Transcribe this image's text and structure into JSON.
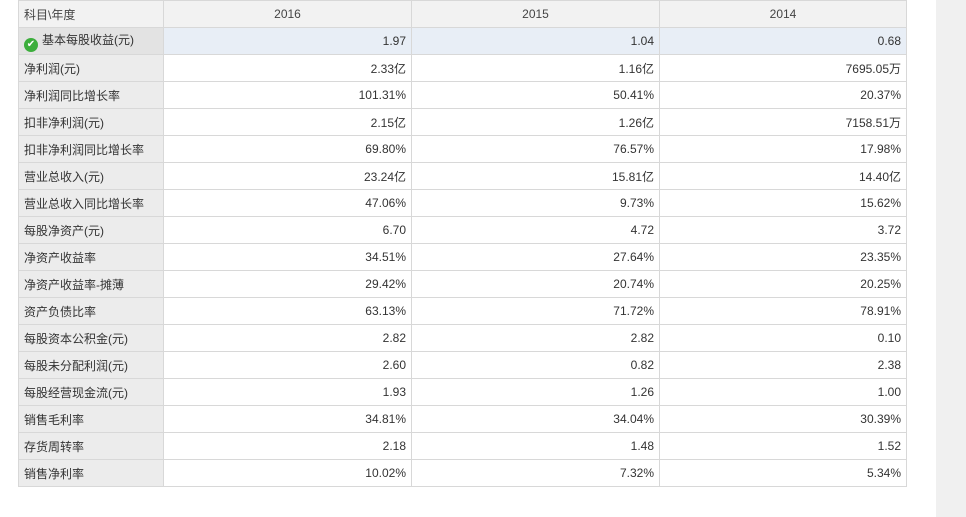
{
  "table": {
    "header": {
      "label": "科目\\年度",
      "years": [
        "2016",
        "2015",
        "2014"
      ]
    },
    "rows": [
      {
        "label": "基本每股收益(元)",
        "values": [
          "1.97",
          "1.04",
          "0.68"
        ],
        "selected": true
      },
      {
        "label": "净利润(元)",
        "values": [
          "2.33亿",
          "1.16亿",
          "7695.05万"
        ]
      },
      {
        "label": "净利润同比增长率",
        "values": [
          "101.31%",
          "50.41%",
          "20.37%"
        ]
      },
      {
        "label": "扣非净利润(元)",
        "values": [
          "2.15亿",
          "1.26亿",
          "7158.51万"
        ]
      },
      {
        "label": "扣非净利润同比增长率",
        "values": [
          "69.80%",
          "76.57%",
          "17.98%"
        ]
      },
      {
        "label": "营业总收入(元)",
        "values": [
          "23.24亿",
          "15.81亿",
          "14.40亿"
        ]
      },
      {
        "label": "营业总收入同比增长率",
        "values": [
          "47.06%",
          "9.73%",
          "15.62%"
        ]
      },
      {
        "label": "每股净资产(元)",
        "values": [
          "6.70",
          "4.72",
          "3.72"
        ]
      },
      {
        "label": "净资产收益率",
        "values": [
          "34.51%",
          "27.64%",
          "23.35%"
        ]
      },
      {
        "label": "净资产收益率-摊薄",
        "values": [
          "29.42%",
          "20.74%",
          "20.25%"
        ]
      },
      {
        "label": "资产负债比率",
        "values": [
          "63.13%",
          "71.72%",
          "78.91%"
        ]
      },
      {
        "label": "每股资本公积金(元)",
        "values": [
          "2.82",
          "2.82",
          "0.10"
        ]
      },
      {
        "label": "每股未分配利润(元)",
        "values": [
          "2.60",
          "0.82",
          "2.38"
        ]
      },
      {
        "label": "每股经营现金流(元)",
        "values": [
          "1.93",
          "1.26",
          "1.00"
        ]
      },
      {
        "label": "销售毛利率",
        "values": [
          "34.81%",
          "34.04%",
          "30.39%"
        ]
      },
      {
        "label": "存货周转率",
        "values": [
          "2.18",
          "1.48",
          "1.52"
        ]
      },
      {
        "label": "销售净利率",
        "values": [
          "10.02%",
          "7.32%",
          "5.34%"
        ]
      }
    ]
  },
  "icons": {
    "selected_row": "check-circle-icon"
  },
  "colors": {
    "check": "#3cae3c",
    "highlight_row": "#e8eef6",
    "label_bg": "#ececec"
  }
}
